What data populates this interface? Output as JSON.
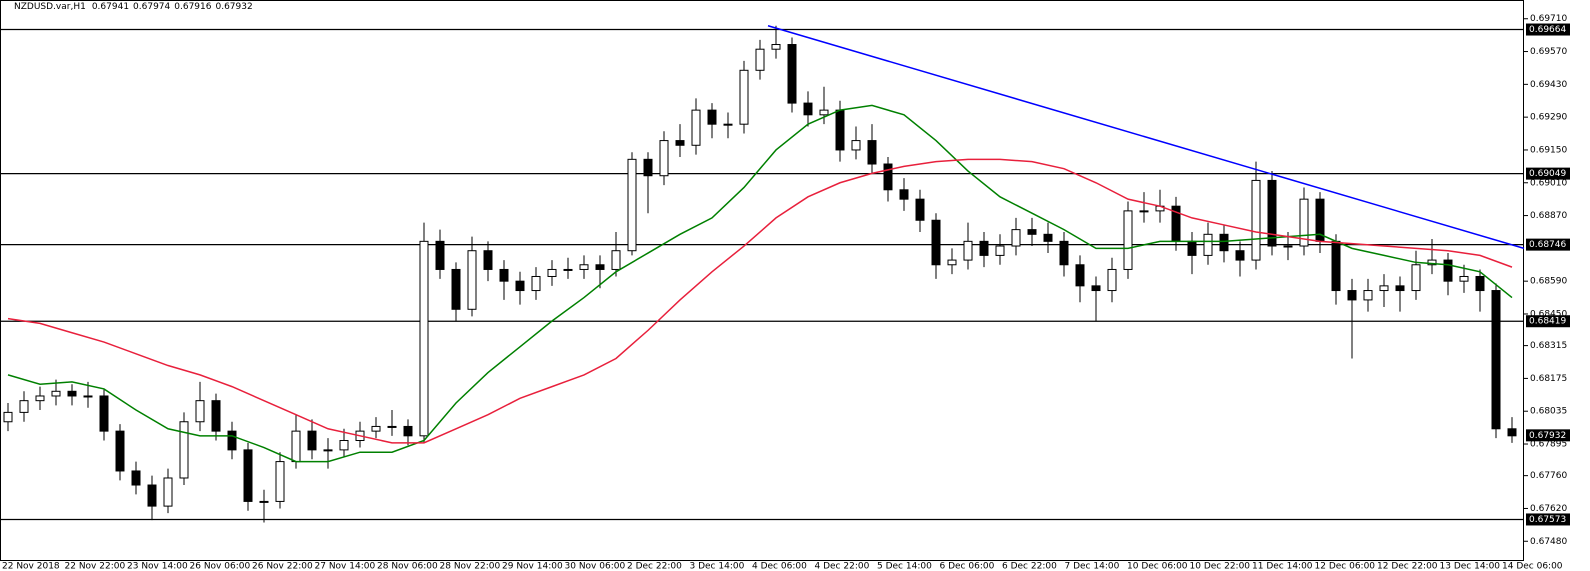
{
  "chart_data": {
    "type": "candlestick",
    "header": {
      "symbol": "NZDUSD.var,H1",
      "open": 0.67941,
      "high": 0.67974,
      "low": 0.67916,
      "close": 0.67932
    },
    "categories": [
      "22 Nov 2018",
      "22 Nov 22:00",
      "23 Nov 14:00",
      "26 Nov 06:00",
      "26 Nov 22:00",
      "27 Nov 14:00",
      "28 Nov 06:00",
      "28 Nov 22:00",
      "29 Nov 14:00",
      "30 Nov 06:00",
      "2 Dec 22:00",
      "3 Dec 14:00",
      "4 Dec 06:00",
      "4 Dec 22:00",
      "5 Dec 14:00",
      "6 Dec 06:00",
      "6 Dec 22:00",
      "7 Dec 14:00",
      "10 Dec 06:00",
      "10 Dec 22:00",
      "11 Dec 14:00",
      "12 Dec 06:00",
      "12 Dec 22:00",
      "13 Dec 14:00",
      "14 Dec 06:00"
    ],
    "open": [
      0.6799,
      0.6803,
      0.6808,
      0.681,
      0.6812,
      0.681,
      0.681,
      0.6795,
      0.6778,
      0.6772,
      0.6763,
      0.6775,
      0.6799,
      0.6808,
      0.6795,
      0.6787,
      0.6765,
      0.6765,
      0.6782,
      0.6795,
      0.6787,
      0.6787,
      0.6791,
      0.6795,
      0.6797,
      0.6797,
      0.6793,
      0.6876,
      0.6864,
      0.6847,
      0.6872,
      0.6864,
      0.6859,
      0.6855,
      0.6861,
      0.6864,
      0.6864,
      0.6866,
      0.6864,
      0.6872,
      0.6911,
      0.6904,
      0.6919,
      0.6917,
      0.6932,
      0.6926,
      0.6926,
      0.6949,
      0.6958,
      0.696,
      0.6935,
      0.693,
      0.6932,
      0.6915,
      0.6919,
      0.6909,
      0.6898,
      0.6894,
      0.6885,
      0.6866,
      0.6868,
      0.6876,
      0.687,
      0.6874,
      0.6881,
      0.6879,
      0.6876,
      0.6866,
      0.6857,
      0.6855,
      0.6864,
      0.6889,
      0.6889,
      0.6891,
      0.6876,
      0.687,
      0.6879,
      0.6872,
      0.6868,
      0.6902,
      0.6874,
      0.6874,
      0.6894,
      0.6876,
      0.6855,
      0.6851,
      0.6855,
      0.6857,
      0.6855,
      0.6866,
      0.6868,
      0.6859,
      0.6861,
      0.6855,
      0.6796
    ],
    "high": [
      0.6807,
      0.6812,
      0.6814,
      0.6817,
      0.6815,
      0.6816,
      0.6813,
      0.6798,
      0.6782,
      0.6776,
      0.6779,
      0.6803,
      0.6816,
      0.6811,
      0.6799,
      0.679,
      0.677,
      0.6786,
      0.6802,
      0.68,
      0.6792,
      0.6796,
      0.6799,
      0.6801,
      0.6804,
      0.68,
      0.6884,
      0.6881,
      0.6867,
      0.6878,
      0.6876,
      0.6868,
      0.6863,
      0.6865,
      0.6868,
      0.6869,
      0.687,
      0.687,
      0.688,
      0.6914,
      0.6914,
      0.6923,
      0.6926,
      0.6937,
      0.6935,
      0.6931,
      0.6953,
      0.6962,
      0.6968,
      0.6963,
      0.694,
      0.6942,
      0.6936,
      0.6925,
      0.6926,
      0.6912,
      0.6903,
      0.6898,
      0.6888,
      0.6873,
      0.6884,
      0.688,
      0.6879,
      0.6886,
      0.6886,
      0.6884,
      0.688,
      0.687,
      0.6861,
      0.6869,
      0.6893,
      0.6897,
      0.6898,
      0.6895,
      0.688,
      0.6884,
      0.6883,
      0.6876,
      0.691,
      0.6906,
      0.688,
      0.6899,
      0.6897,
      0.6879,
      0.686,
      0.686,
      0.6862,
      0.6861,
      0.6872,
      0.6877,
      0.6871,
      0.6866,
      0.6864,
      0.6858,
      0.6801
    ],
    "low": [
      0.6795,
      0.6799,
      0.6804,
      0.6806,
      0.6806,
      0.6805,
      0.6791,
      0.6774,
      0.6768,
      0.6757,
      0.676,
      0.6772,
      0.6795,
      0.6791,
      0.6783,
      0.6761,
      0.6756,
      0.6762,
      0.6779,
      0.6783,
      0.6779,
      0.6784,
      0.6788,
      0.6792,
      0.6793,
      0.6789,
      0.679,
      0.686,
      0.6842,
      0.6844,
      0.6859,
      0.6851,
      0.6849,
      0.6851,
      0.6857,
      0.686,
      0.686,
      0.6856,
      0.6861,
      0.687,
      0.6888,
      0.69,
      0.6912,
      0.6913,
      0.692,
      0.692,
      0.6922,
      0.6945,
      0.6954,
      0.6931,
      0.6925,
      0.6926,
      0.691,
      0.6911,
      0.6905,
      0.6893,
      0.6889,
      0.688,
      0.686,
      0.6862,
      0.6864,
      0.6865,
      0.6866,
      0.687,
      0.6874,
      0.6871,
      0.6861,
      0.685,
      0.6842,
      0.685,
      0.686,
      0.6884,
      0.6884,
      0.6872,
      0.6862,
      0.6866,
      0.6867,
      0.6861,
      0.6864,
      0.687,
      0.6868,
      0.687,
      0.6871,
      0.6849,
      0.6826,
      0.6846,
      0.6848,
      0.6846,
      0.6851,
      0.6862,
      0.6853,
      0.6854,
      0.6846,
      0.6792,
      0.679
    ],
    "close": [
      0.6803,
      0.6808,
      0.681,
      0.6812,
      0.681,
      0.681,
      0.6795,
      0.6778,
      0.6772,
      0.6763,
      0.6775,
      0.6799,
      0.6808,
      0.6795,
      0.6787,
      0.6765,
      0.6765,
      0.6782,
      0.6795,
      0.6787,
      0.6787,
      0.6791,
      0.6795,
      0.6797,
      0.6797,
      0.6793,
      0.6876,
      0.6864,
      0.6847,
      0.6872,
      0.6864,
      0.6859,
      0.6855,
      0.6861,
      0.6864,
      0.6864,
      0.6866,
      0.6864,
      0.6872,
      0.6911,
      0.6904,
      0.6919,
      0.6917,
      0.6932,
      0.6926,
      0.6926,
      0.6949,
      0.6958,
      0.696,
      0.6935,
      0.693,
      0.6932,
      0.6915,
      0.6919,
      0.6909,
      0.6898,
      0.6894,
      0.6885,
      0.6866,
      0.6868,
      0.6876,
      0.687,
      0.6874,
      0.6881,
      0.6879,
      0.6876,
      0.6866,
      0.6857,
      0.6855,
      0.6864,
      0.6889,
      0.6889,
      0.6891,
      0.6876,
      0.687,
      0.6879,
      0.6872,
      0.6868,
      0.6902,
      0.6874,
      0.6874,
      0.6894,
      0.6876,
      0.6855,
      0.6851,
      0.6855,
      0.6857,
      0.6855,
      0.6866,
      0.6868,
      0.6859,
      0.6861,
      0.6855,
      0.6796,
      0.6793
    ],
    "up_color": "#ffffff",
    "down_color": "#000000",
    "lines": [
      {
        "color": "#008000",
        "x": [
          0,
          2,
          4,
          6,
          8,
          10,
          12,
          14,
          16,
          18,
          20,
          22,
          24,
          26,
          28,
          30,
          32,
          34,
          36,
          38,
          40,
          42,
          44,
          46,
          48,
          50,
          52,
          54,
          56,
          58,
          60,
          62,
          64,
          66,
          68,
          70,
          72,
          74,
          76,
          78,
          80,
          82,
          84,
          86,
          88,
          90,
          92,
          94
        ],
        "values": [
          0.6819,
          0.6815,
          0.6816,
          0.6813,
          0.6804,
          0.6796,
          0.6793,
          0.6793,
          0.6788,
          0.6782,
          0.6782,
          0.6786,
          0.6786,
          0.6791,
          0.6807,
          0.682,
          0.6831,
          0.6842,
          0.6852,
          0.6863,
          0.6871,
          0.6879,
          0.6886,
          0.6899,
          0.6915,
          0.6926,
          0.6932,
          0.6934,
          0.693,
          0.6919,
          0.6906,
          0.6895,
          0.6888,
          0.6881,
          0.6873,
          0.6873,
          0.6876,
          0.6876,
          0.6876,
          0.6877,
          0.6878,
          0.6879,
          0.6873,
          0.687,
          0.6867,
          0.6866,
          0.6863,
          0.6852
        ]
      },
      {
        "color": "#e8203c",
        "x": [
          0,
          2,
          4,
          6,
          8,
          10,
          12,
          14,
          16,
          18,
          20,
          22,
          24,
          26,
          28,
          30,
          32,
          34,
          36,
          38,
          40,
          42,
          44,
          46,
          48,
          50,
          52,
          54,
          56,
          58,
          60,
          62,
          64,
          66,
          68,
          70,
          72,
          74,
          76,
          78,
          80,
          82,
          84,
          86,
          88,
          90,
          92,
          94
        ],
        "values": [
          0.6843,
          0.6841,
          0.6837,
          0.6833,
          0.6828,
          0.6823,
          0.6819,
          0.6814,
          0.6808,
          0.6802,
          0.6796,
          0.6793,
          0.679,
          0.679,
          0.6796,
          0.6802,
          0.6809,
          0.6814,
          0.6819,
          0.6826,
          0.6838,
          0.6851,
          0.6863,
          0.6874,
          0.6886,
          0.6895,
          0.6901,
          0.6905,
          0.6908,
          0.691,
          0.6911,
          0.6911,
          0.691,
          0.6907,
          0.6901,
          0.6894,
          0.6891,
          0.6886,
          0.6883,
          0.688,
          0.6878,
          0.6876,
          0.6875,
          0.6874,
          0.6873,
          0.6872,
          0.687,
          0.6865
        ]
      }
    ],
    "trendline": {
      "color": "#0000ff",
      "x": [
        47.5,
        94.75
      ],
      "values": [
        0.6968,
        0.6873
      ]
    },
    "levels": [
      0.69664,
      0.69049,
      0.68746,
      0.68419,
      0.67573
    ],
    "current_price": 0.67932,
    "ylim": [
      0.674,
      0.6979
    ],
    "yticks": [
      {
        "value": 0.6971,
        "label": "0.69710"
      },
      {
        "value": 0.6957,
        "label": "0.69570"
      },
      {
        "value": 0.6943,
        "label": "0.69430"
      },
      {
        "value": 0.6929,
        "label": "0.69290"
      },
      {
        "value": 0.6915,
        "label": "0.69150"
      },
      {
        "value": 0.6901,
        "label": "0.69010"
      },
      {
        "value": 0.6887,
        "label": "0.68870"
      },
      {
        "value": 0.6859,
        "label": "0.68590"
      },
      {
        "value": 0.6845,
        "label": "0.68450"
      },
      0.68315,
      0.68175,
      0.68035,
      0.67895,
      {
        "value": 0.6776,
        "label": "0.67760"
      },
      {
        "value": 0.6762,
        "label": "0.67620"
      },
      {
        "value": 0.6748,
        "label": "0.67480"
      }
    ]
  }
}
